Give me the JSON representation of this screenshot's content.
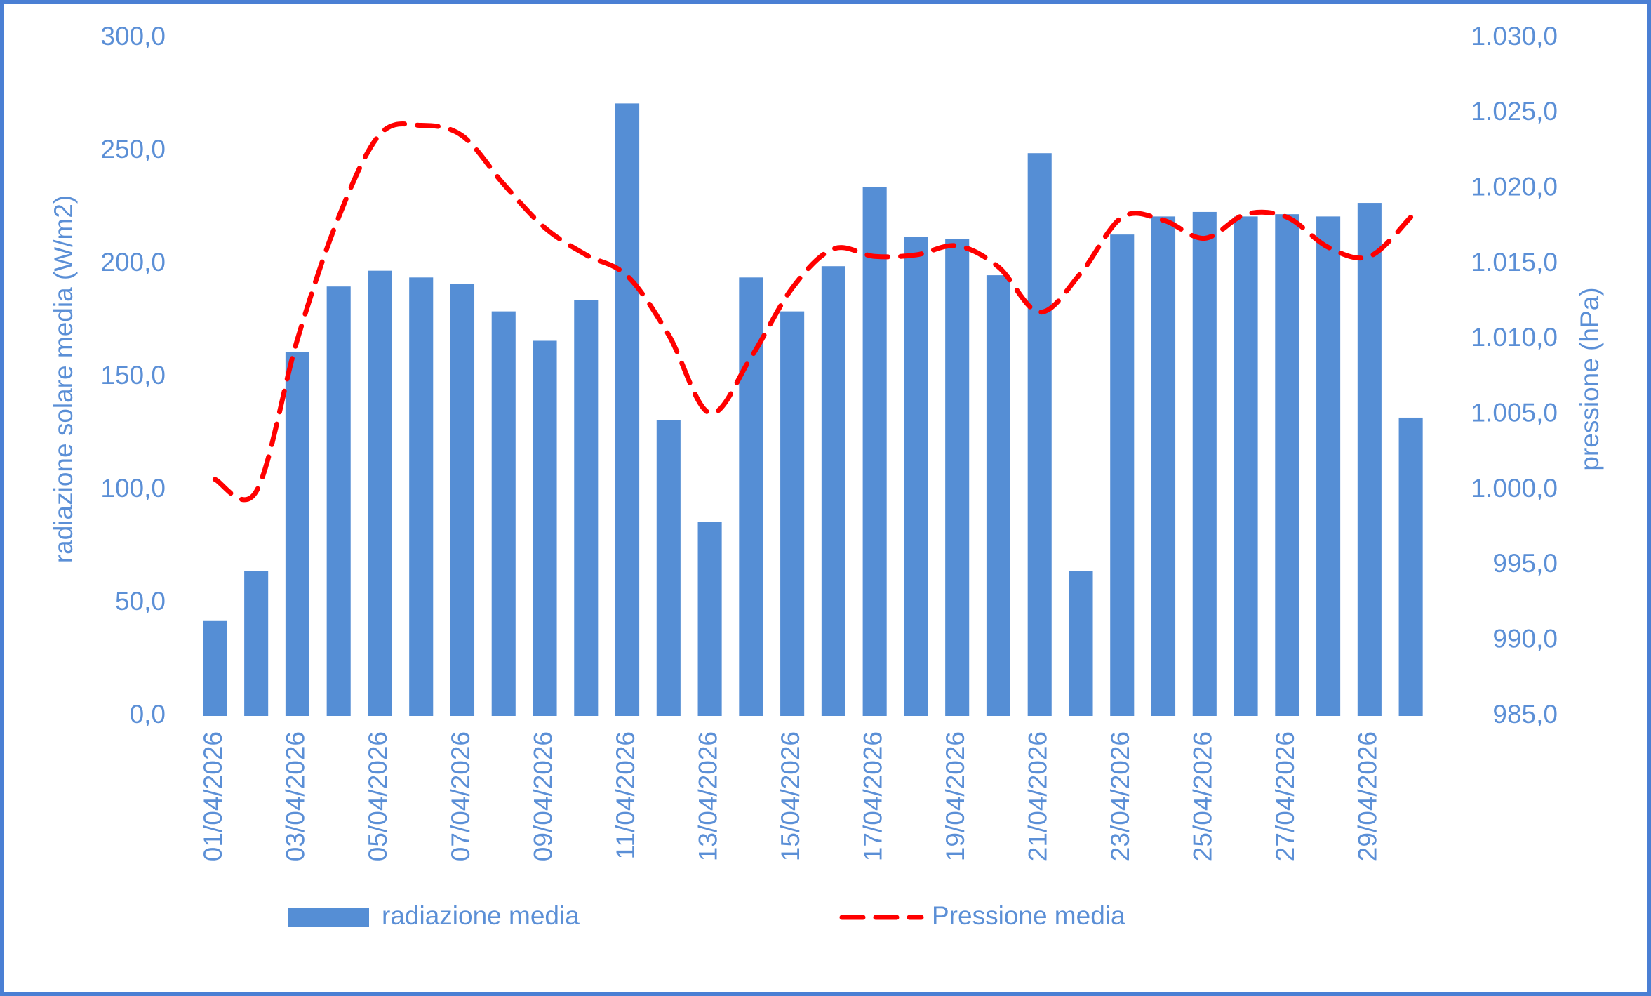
{
  "chart_data": {
    "type": "bar-line",
    "categories": [
      "01/04/2026",
      null,
      "03/04/2026",
      null,
      "05/04/2026",
      null,
      "07/04/2026",
      null,
      "09/04/2026",
      null,
      "11/04/2026",
      null,
      "13/04/2026",
      null,
      "15/04/2026",
      null,
      "17/04/2026",
      null,
      "19/04/2026",
      null,
      "21/04/2026",
      null,
      "23/04/2026",
      null,
      "25/04/2026",
      null,
      "27/04/2026",
      null,
      "29/04/2026",
      null
    ],
    "series": [
      {
        "name": "radiazione media",
        "type": "bar",
        "color": "#558ed5",
        "axis": "y",
        "values": [
          42,
          64,
          161,
          190,
          197,
          194,
          191,
          179,
          166,
          184,
          271,
          131,
          86,
          194,
          179,
          199,
          234,
          212,
          211,
          195,
          249,
          64,
          213,
          221,
          223,
          221,
          222,
          221,
          227,
          132
        ]
      },
      {
        "name": "Pressione media",
        "type": "line",
        "color": "#ff0000",
        "dashed": true,
        "axis": "y2",
        "values": [
          1000.7,
          999.9,
          1010.0,
          1018.1,
          1023.6,
          1024.2,
          1023.5,
          1020.3,
          1017.4,
          1015.6,
          1014.2,
          1010.3,
          1005.1,
          1008.8,
          1013.4,
          1016.0,
          1015.5,
          1015.6,
          1016.2,
          1014.8,
          1011.8,
          1014.4,
          1018.1,
          1017.9,
          1016.7,
          1018.3,
          1018.1,
          1016.1,
          1015.5,
          1018.1
        ]
      }
    ],
    "ylabel": "radiazione solare media (W/m2)",
    "y2label": "pressione (hPa)",
    "ylim": [
      0,
      300
    ],
    "yticks": [
      {
        "value": 0,
        "label": "0,0"
      },
      {
        "value": 50,
        "label": "50,0"
      },
      {
        "value": 100,
        "label": "100,0"
      },
      {
        "value": 150,
        "label": "150,0"
      },
      {
        "value": 200,
        "label": "200,0"
      },
      {
        "value": 250,
        "label": "250,0"
      },
      {
        "value": 300,
        "label": "300,0"
      }
    ],
    "y2lim": [
      985,
      1030
    ],
    "y2ticks": [
      {
        "value": 985,
        "label": "985,0"
      },
      {
        "value": 990,
        "label": "990,0"
      },
      {
        "value": 995,
        "label": "995,0"
      },
      {
        "value": 1000,
        "label": "1.000,0"
      },
      {
        "value": 1005,
        "label": "1.005,0"
      },
      {
        "value": 1010,
        "label": "1.010,0"
      },
      {
        "value": 1015,
        "label": "1.015,0"
      },
      {
        "value": 1020,
        "label": "1.020,0"
      },
      {
        "value": 1025,
        "label": "1.025,0"
      },
      {
        "value": 1030,
        "label": "1.030,0"
      }
    ],
    "grid": false,
    "legend": "bottom"
  }
}
